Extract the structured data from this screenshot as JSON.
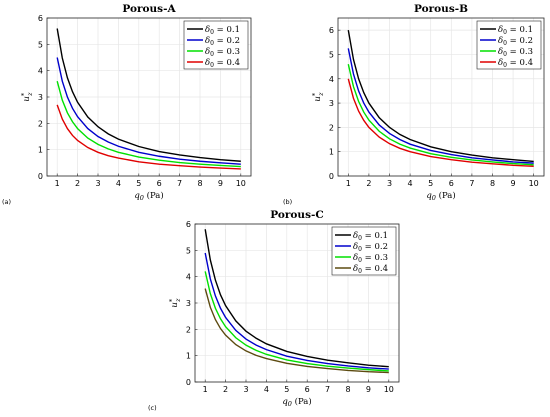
{
  "chart_data": [
    {
      "type": "line",
      "panel_label": "(a)",
      "title": "Porous-A",
      "xlabel": "q0 (Pa)",
      "ylabel": "u*z",
      "xlim": [
        0.5,
        10.5
      ],
      "ylim": [
        0,
        6
      ],
      "xticks": [
        "1",
        "2",
        "3",
        "4",
        "5",
        "6",
        "7",
        "8",
        "9",
        "10"
      ],
      "yticks": [
        "0",
        "1",
        "2",
        "3",
        "4",
        "5",
        "6"
      ],
      "grid": true,
      "legend_position": "top-right",
      "x": [
        1,
        1.25,
        1.5,
        1.75,
        2,
        2.5,
        3,
        3.5,
        4,
        5,
        6,
        7,
        8,
        9,
        10
      ],
      "series": [
        {
          "name": "δ0 = 0.1",
          "color": "#000000",
          "values": [
            5.6,
            4.48,
            3.73,
            3.2,
            2.8,
            2.24,
            1.87,
            1.6,
            1.4,
            1.12,
            0.93,
            0.8,
            0.7,
            0.62,
            0.56
          ]
        },
        {
          "name": "δ0 = 0.2",
          "color": "#0000cc",
          "values": [
            4.5,
            3.6,
            3.0,
            2.57,
            2.25,
            1.8,
            1.5,
            1.29,
            1.13,
            0.9,
            0.75,
            0.64,
            0.56,
            0.5,
            0.45
          ]
        },
        {
          "name": "δ0 = 0.3",
          "color": "#00e000",
          "values": [
            3.6,
            2.88,
            2.4,
            2.06,
            1.8,
            1.44,
            1.2,
            1.03,
            0.9,
            0.72,
            0.6,
            0.51,
            0.45,
            0.4,
            0.36
          ]
        },
        {
          "name": "δ0 = 0.4",
          "color": "#e00000",
          "values": [
            2.7,
            2.16,
            1.8,
            1.54,
            1.35,
            1.08,
            0.9,
            0.77,
            0.68,
            0.54,
            0.45,
            0.39,
            0.34,
            0.3,
            0.27
          ]
        }
      ]
    },
    {
      "type": "line",
      "panel_label": "(b)",
      "title": "Porous-B",
      "xlabel": "q0 (Pa)",
      "ylabel": "u*z",
      "xlim": [
        0.5,
        10.5
      ],
      "ylim": [
        0,
        6.5
      ],
      "xticks": [
        "1",
        "2",
        "3",
        "4",
        "5",
        "6",
        "7",
        "8",
        "9",
        "10"
      ],
      "yticks": [
        "0",
        "1",
        "2",
        "3",
        "4",
        "5",
        "6"
      ],
      "grid": true,
      "legend_position": "top-right",
      "x": [
        1,
        1.25,
        1.5,
        1.75,
        2,
        2.5,
        3,
        3.5,
        4,
        5,
        6,
        7,
        8,
        9,
        10
      ],
      "series": [
        {
          "name": "δ0 = 0.1",
          "color": "#000000",
          "values": [
            6.0,
            4.8,
            4.0,
            3.43,
            3.0,
            2.4,
            2.0,
            1.71,
            1.5,
            1.2,
            1.0,
            0.86,
            0.75,
            0.67,
            0.6
          ]
        },
        {
          "name": "δ0 = 0.2",
          "color": "#0000cc",
          "values": [
            5.25,
            4.2,
            3.5,
            3.0,
            2.63,
            2.1,
            1.75,
            1.5,
            1.31,
            1.05,
            0.88,
            0.75,
            0.66,
            0.58,
            0.53
          ]
        },
        {
          "name": "δ0 = 0.3",
          "color": "#00e000",
          "values": [
            4.6,
            3.68,
            3.07,
            2.63,
            2.3,
            1.84,
            1.53,
            1.31,
            1.15,
            0.92,
            0.77,
            0.66,
            0.58,
            0.51,
            0.46
          ]
        },
        {
          "name": "δ0 = 0.4",
          "color": "#e00000",
          "values": [
            4.0,
            3.2,
            2.67,
            2.29,
            2.0,
            1.6,
            1.33,
            1.14,
            1.0,
            0.8,
            0.67,
            0.57,
            0.5,
            0.44,
            0.4
          ]
        }
      ]
    },
    {
      "type": "line",
      "panel_label": "(c)",
      "title": "Porous-C",
      "xlabel": "q0 (Pa)",
      "ylabel": "u*z",
      "xlim": [
        0.5,
        10.5
      ],
      "ylim": [
        0,
        6
      ],
      "xticks": [
        "1",
        "2",
        "3",
        "4",
        "5",
        "6",
        "7",
        "8",
        "9",
        "10"
      ],
      "yticks": [
        "0",
        "1",
        "2",
        "3",
        "4",
        "5",
        "6"
      ],
      "grid": true,
      "legend_position": "top-right",
      "x": [
        1,
        1.25,
        1.5,
        1.75,
        2,
        2.5,
        3,
        3.5,
        4,
        5,
        6,
        7,
        8,
        9,
        10
      ],
      "series": [
        {
          "name": "δ0 = 0.1",
          "color": "#000000",
          "values": [
            5.8,
            4.64,
            3.87,
            3.31,
            2.9,
            2.32,
            1.93,
            1.66,
            1.45,
            1.16,
            0.97,
            0.83,
            0.73,
            0.64,
            0.58
          ]
        },
        {
          "name": "δ0 = 0.2",
          "color": "#0000cc",
          "values": [
            4.9,
            3.92,
            3.27,
            2.8,
            2.45,
            1.96,
            1.63,
            1.4,
            1.23,
            0.98,
            0.82,
            0.7,
            0.61,
            0.54,
            0.49
          ]
        },
        {
          "name": "δ0 = 0.3",
          "color": "#00e000",
          "values": [
            4.2,
            3.36,
            2.8,
            2.4,
            2.1,
            1.68,
            1.4,
            1.2,
            1.05,
            0.84,
            0.7,
            0.6,
            0.53,
            0.47,
            0.42
          ]
        },
        {
          "name": "δ0 = 0.4",
          "color": "#5c4a10",
          "values": [
            3.55,
            2.84,
            2.37,
            2.03,
            1.78,
            1.42,
            1.18,
            1.01,
            0.89,
            0.71,
            0.59,
            0.51,
            0.44,
            0.39,
            0.36
          ]
        }
      ]
    }
  ]
}
